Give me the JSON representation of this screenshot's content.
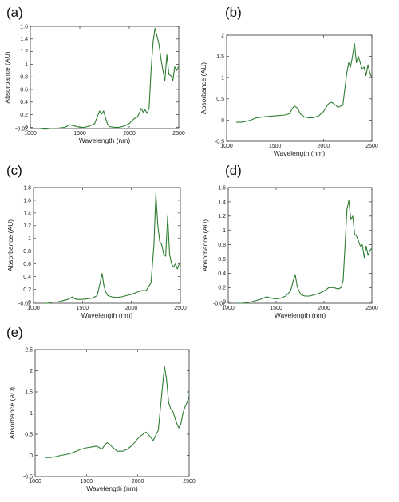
{
  "chart_data": [
    {
      "type": "line",
      "panel_label": "(a)",
      "xlabel": "Wavelength (nm)",
      "ylabel": "Absorbance (AU)",
      "xlim": [
        1000,
        2500
      ],
      "ylim": [
        -0.02,
        1.6
      ],
      "xticks": [
        1000,
        1500,
        2000,
        2500
      ],
      "yticks": [
        -0.02,
        0,
        0.2,
        0.4,
        0.6,
        0.8,
        1,
        1.2,
        1.4,
        1.6
      ],
      "ytick_labels": [
        "-0.02",
        "0",
        "0.2",
        "0.4",
        "0.6",
        "0.8",
        "1",
        "1.2",
        "1.4",
        "1.6"
      ],
      "grid": false,
      "series": [
        {
          "color": "#2e7d32",
          "x": [
            1100,
            1150,
            1200,
            1250,
            1300,
            1350,
            1400,
            1450,
            1500,
            1550,
            1600,
            1650,
            1680,
            1700,
            1720,
            1740,
            1760,
            1780,
            1800,
            1850,
            1900,
            1950,
            2000,
            2050,
            2080,
            2100,
            2120,
            2140,
            2160,
            2180,
            2200,
            2220,
            2240,
            2260,
            2280,
            2300,
            2320,
            2340,
            2360,
            2380,
            2400,
            2420,
            2440,
            2460,
            2480,
            2500
          ],
          "y": [
            -0.02,
            -0.03,
            -0.02,
            -0.02,
            -0.01,
            0.0,
            0.04,
            0.02,
            0.0,
            0.0,
            0.02,
            0.06,
            0.18,
            0.26,
            0.21,
            0.26,
            0.15,
            0.05,
            0.01,
            0.0,
            0.0,
            0.02,
            0.06,
            0.14,
            0.16,
            0.22,
            0.3,
            0.24,
            0.28,
            0.22,
            0.3,
            0.9,
            1.35,
            1.57,
            1.45,
            1.32,
            1.08,
            0.9,
            0.74,
            1.15,
            0.84,
            0.82,
            0.74,
            0.96,
            0.9,
            0.97
          ]
        }
      ]
    },
    {
      "type": "line",
      "panel_label": "(b)",
      "xlabel": "Wavelength (nm)",
      "ylabel": "Absorbance (AU)",
      "xlim": [
        1000,
        2500
      ],
      "ylim": [
        -0.5,
        2
      ],
      "xticks": [
        1000,
        1500,
        2000,
        2500
      ],
      "yticks": [
        -0.5,
        0,
        0.5,
        1,
        1.5,
        2
      ],
      "ytick_labels": [
        "-0.5",
        "0",
        "0.5",
        "1",
        "1.5",
        "2"
      ],
      "grid": false,
      "series": [
        {
          "color": "#2e7d32",
          "x": [
            1100,
            1150,
            1200,
            1250,
            1300,
            1400,
            1500,
            1600,
            1650,
            1680,
            1700,
            1720,
            1740,
            1760,
            1800,
            1850,
            1900,
            1950,
            2000,
            2050,
            2080,
            2100,
            2150,
            2200,
            2240,
            2260,
            2280,
            2300,
            2320,
            2340,
            2360,
            2380,
            2400,
            2420,
            2440,
            2460,
            2480,
            2500
          ],
          "y": [
            -0.05,
            -0.05,
            -0.03,
            0.0,
            0.05,
            0.08,
            0.1,
            0.12,
            0.15,
            0.28,
            0.33,
            0.3,
            0.25,
            0.15,
            0.08,
            0.05,
            0.06,
            0.1,
            0.2,
            0.38,
            0.42,
            0.4,
            0.3,
            0.35,
            1.1,
            1.35,
            1.25,
            1.5,
            1.8,
            1.35,
            1.5,
            1.35,
            1.2,
            1.25,
            1.05,
            1.3,
            1.1,
            1.0
          ]
        }
      ]
    },
    {
      "type": "line",
      "panel_label": "(c)",
      "xlabel": "Wavelength (nm)",
      "ylabel": "Absorbance (AU)",
      "xlim": [
        1000,
        2500
      ],
      "ylim": [
        -0.02,
        1.8
      ],
      "xticks": [
        1000,
        1500,
        2000,
        2500
      ],
      "yticks": [
        -0.02,
        0,
        0.2,
        0.4,
        0.6,
        0.8,
        1,
        1.2,
        1.4,
        1.6,
        1.8
      ],
      "ytick_labels": [
        "-0.02",
        "0",
        "0.2",
        "0.4",
        "0.6",
        "0.8",
        "1",
        "1.2",
        "1.4",
        "1.6",
        "1.8"
      ],
      "grid": false,
      "series": [
        {
          "color": "#2e7d32",
          "x": [
            1100,
            1150,
            1200,
            1250,
            1300,
            1350,
            1400,
            1420,
            1450,
            1500,
            1550,
            1600,
            1650,
            1680,
            1700,
            1720,
            1740,
            1760,
            1800,
            1850,
            1900,
            1950,
            2000,
            2050,
            2100,
            2150,
            2200,
            2230,
            2250,
            2270,
            2290,
            2310,
            2330,
            2350,
            2370,
            2390,
            2410,
            2430,
            2450,
            2470,
            2500
          ],
          "y": [
            -0.02,
            -0.02,
            0.0,
            0.0,
            0.02,
            0.04,
            0.08,
            0.05,
            0.04,
            0.04,
            0.05,
            0.06,
            0.1,
            0.3,
            0.45,
            0.25,
            0.15,
            0.1,
            0.08,
            0.07,
            0.08,
            0.1,
            0.12,
            0.15,
            0.18,
            0.18,
            0.3,
            0.9,
            1.7,
            1.2,
            0.95,
            0.9,
            0.75,
            0.72,
            1.35,
            0.75,
            0.6,
            0.55,
            0.6,
            0.52,
            0.65
          ]
        }
      ]
    },
    {
      "type": "line",
      "panel_label": "(d)",
      "xlabel": "Wavelength (nm)",
      "ylabel": "Absorbance (AU)",
      "xlim": [
        1000,
        2500
      ],
      "ylim": [
        -0.02,
        1.6
      ],
      "xticks": [
        1000,
        1500,
        2000,
        2500
      ],
      "yticks": [
        -0.02,
        0,
        0.2,
        0.4,
        0.6,
        0.8,
        1,
        1.2,
        1.4,
        1.6
      ],
      "ytick_labels": [
        "-0.02",
        "0",
        "0.2",
        "0.4",
        "0.6",
        "0.8",
        "1",
        "1.2",
        "1.4",
        "1.6"
      ],
      "grid": false,
      "series": [
        {
          "color": "#2e7d32",
          "x": [
            1100,
            1150,
            1200,
            1250,
            1300,
            1350,
            1400,
            1450,
            1500,
            1550,
            1600,
            1650,
            1680,
            1700,
            1720,
            1740,
            1760,
            1800,
            1850,
            1900,
            1950,
            2000,
            2050,
            2100,
            2150,
            2180,
            2200,
            2220,
            2240,
            2260,
            2280,
            2300,
            2320,
            2340,
            2360,
            2380,
            2400,
            2420,
            2440,
            2460,
            2480,
            2500
          ],
          "y": [
            -0.02,
            -0.02,
            -0.01,
            0.0,
            0.02,
            0.04,
            0.07,
            0.05,
            0.04,
            0.05,
            0.08,
            0.15,
            0.3,
            0.38,
            0.22,
            0.15,
            0.1,
            0.08,
            0.08,
            0.1,
            0.12,
            0.15,
            0.2,
            0.2,
            0.18,
            0.2,
            0.3,
            0.8,
            1.3,
            1.42,
            1.15,
            1.2,
            0.95,
            0.92,
            0.85,
            0.78,
            0.8,
            0.62,
            0.78,
            0.65,
            0.72,
            0.75
          ]
        }
      ]
    },
    {
      "type": "line",
      "panel_label": "(e)",
      "xlabel": "Wavelength (nm)",
      "ylabel": "Absorbance (AU)",
      "xlim": [
        1000,
        2500
      ],
      "ylim": [
        -0.5,
        2.5
      ],
      "xticks": [
        1000,
        1500,
        2000,
        2500
      ],
      "yticks": [
        -0.5,
        0,
        0.5,
        1,
        1.5,
        2,
        2.5
      ],
      "ytick_labels": [
        "-0.5",
        "0",
        "0.5",
        "1",
        "1.5",
        "2",
        "2.5"
      ],
      "grid": false,
      "series": [
        {
          "color": "#2e7d32",
          "x": [
            1100,
            1150,
            1200,
            1250,
            1300,
            1350,
            1400,
            1450,
            1500,
            1550,
            1600,
            1650,
            1680,
            1700,
            1720,
            1750,
            1800,
            1850,
            1900,
            1950,
            2000,
            2050,
            2080,
            2100,
            2150,
            2200,
            2240,
            2260,
            2280,
            2300,
            2320,
            2340,
            2360,
            2380,
            2400,
            2420,
            2440,
            2460,
            2480,
            2500
          ],
          "y": [
            -0.05,
            -0.05,
            -0.03,
            0.0,
            0.02,
            0.05,
            0.1,
            0.15,
            0.18,
            0.2,
            0.22,
            0.15,
            0.25,
            0.3,
            0.28,
            0.2,
            0.1,
            0.1,
            0.15,
            0.25,
            0.4,
            0.5,
            0.55,
            0.5,
            0.35,
            0.6,
            1.6,
            2.1,
            1.8,
            1.25,
            1.1,
            1.05,
            0.9,
            0.75,
            0.65,
            0.75,
            1.0,
            1.15,
            1.25,
            1.4
          ]
        }
      ]
    }
  ]
}
